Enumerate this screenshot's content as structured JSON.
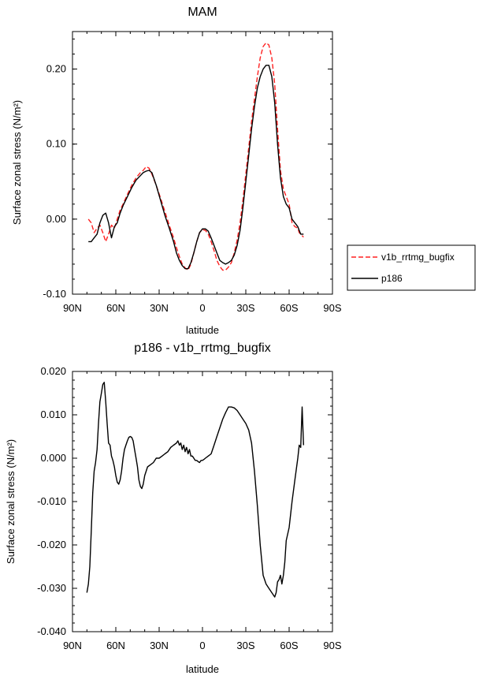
{
  "chart_data": [
    {
      "type": "line",
      "title": "MAM",
      "xlabel": "latitude",
      "ylabel": "Surface zonal stress (N/m²)",
      "xlim": [
        90,
        -90
      ],
      "ylim": [
        -0.1,
        0.25
      ],
      "x_ticks": [
        90,
        60,
        30,
        0,
        -30,
        -60,
        -90
      ],
      "x_tick_labels": [
        "90N",
        "60N",
        "30N",
        "0",
        "30S",
        "60S",
        "90S"
      ],
      "y_ticks": [
        -0.1,
        0.0,
        0.1,
        0.2
      ],
      "y_tick_labels": [
        "-0.10",
        "0.00",
        "0.10",
        "0.20"
      ],
      "legend_position": "outside-right",
      "series": [
        {
          "name": "v1b_rrtmg_bugfix",
          "color": "#ff2020",
          "style": "dashed",
          "x": [
            79,
            77,
            75,
            73,
            71,
            69,
            67,
            65,
            63,
            61,
            59,
            57,
            55,
            52,
            49,
            46,
            43,
            41,
            39,
            37,
            35,
            32,
            29,
            26,
            23,
            20,
            18,
            16,
            14,
            12,
            10,
            8,
            6,
            4,
            2,
            0,
            -2,
            -4,
            -6,
            -8,
            -10,
            -12,
            -14,
            -16,
            -18,
            -20,
            -22,
            -24,
            -26,
            -28,
            -30,
            -32,
            -34,
            -36,
            -38,
            -40,
            -42,
            -44,
            -46,
            -48,
            -50,
            -52,
            -54,
            -56,
            -58,
            -60,
            -62,
            -64,
            -66,
            -67,
            -68,
            -69,
            -70
          ],
          "y": [
            0.0,
            -0.005,
            -0.018,
            -0.012,
            -0.008,
            -0.018,
            -0.03,
            -0.02,
            -0.008,
            -0.012,
            0.0,
            0.012,
            0.02,
            0.033,
            0.045,
            0.055,
            0.062,
            0.065,
            0.07,
            0.068,
            0.06,
            0.045,
            0.028,
            0.01,
            -0.008,
            -0.025,
            -0.038,
            -0.05,
            -0.06,
            -0.065,
            -0.068,
            -0.06,
            -0.045,
            -0.03,
            -0.018,
            -0.014,
            -0.015,
            -0.02,
            -0.03,
            -0.042,
            -0.055,
            -0.063,
            -0.068,
            -0.068,
            -0.064,
            -0.058,
            -0.045,
            -0.028,
            -0.005,
            0.025,
            0.06,
            0.095,
            0.13,
            0.16,
            0.19,
            0.215,
            0.23,
            0.235,
            0.232,
            0.215,
            0.18,
            0.12,
            0.065,
            0.04,
            0.03,
            0.02,
            -0.005,
            -0.01,
            -0.012,
            -0.018,
            -0.02,
            -0.022,
            -0.024
          ]
        },
        {
          "name": "p186",
          "color": "#000000",
          "style": "solid",
          "x": [
            79,
            77,
            75,
            73,
            71,
            69,
            67,
            65,
            63,
            61,
            59,
            57,
            55,
            52,
            49,
            46,
            43,
            41,
            39,
            37,
            35,
            32,
            29,
            26,
            23,
            20,
            18,
            16,
            14,
            12,
            10,
            8,
            6,
            4,
            2,
            0,
            -2,
            -4,
            -6,
            -8,
            -10,
            -12,
            -14,
            -16,
            -18,
            -20,
            -22,
            -24,
            -26,
            -28,
            -30,
            -32,
            -34,
            -36,
            -38,
            -40,
            -42,
            -44,
            -46,
            -48,
            -50,
            -52,
            -54,
            -56,
            -58,
            -60,
            -62,
            -64,
            -66,
            -67,
            -68,
            -69,
            -70
          ],
          "y": [
            -0.03,
            -0.03,
            -0.025,
            -0.02,
            -0.005,
            0.005,
            0.008,
            -0.005,
            -0.025,
            -0.01,
            -0.005,
            0.008,
            0.018,
            0.03,
            0.042,
            0.052,
            0.058,
            0.062,
            0.064,
            0.065,
            0.062,
            0.045,
            0.025,
            0.005,
            -0.012,
            -0.03,
            -0.045,
            -0.055,
            -0.062,
            -0.066,
            -0.066,
            -0.058,
            -0.045,
            -0.03,
            -0.018,
            -0.013,
            -0.013,
            -0.016,
            -0.025,
            -0.035,
            -0.045,
            -0.055,
            -0.058,
            -0.06,
            -0.058,
            -0.055,
            -0.048,
            -0.035,
            -0.015,
            0.015,
            0.05,
            0.085,
            0.12,
            0.15,
            0.175,
            0.19,
            0.2,
            0.205,
            0.205,
            0.19,
            0.155,
            0.1,
            0.055,
            0.03,
            0.02,
            0.015,
            0.0,
            -0.005,
            -0.01,
            -0.015,
            -0.02,
            -0.02,
            -0.02
          ]
        }
      ]
    },
    {
      "type": "line",
      "title": "p186 - v1b_rrtmg_bugfix",
      "xlabel": "latitude",
      "ylabel": "Surface zonal stress (N/m²)",
      "xlim": [
        90,
        -90
      ],
      "ylim": [
        -0.04,
        0.02
      ],
      "x_ticks": [
        90,
        60,
        30,
        0,
        -30,
        -60,
        -90
      ],
      "x_tick_labels": [
        "90N",
        "60N",
        "30N",
        "0",
        "30S",
        "60S",
        "90S"
      ],
      "y_ticks": [
        -0.04,
        -0.03,
        -0.02,
        -0.01,
        0.0,
        0.01,
        0.02
      ],
      "y_tick_labels": [
        "-0.040",
        "-0.030",
        "-0.020",
        "-0.010",
        "0.000",
        "0.010",
        "0.020"
      ],
      "series": [
        {
          "name": "p186 - v1b_rrtmg_bugfix",
          "color": "#000000",
          "style": "solid",
          "x": [
            80,
            79,
            78,
            77,
            76,
            75,
            74,
            73,
            72,
            71,
            70,
            69,
            68,
            67,
            66,
            65,
            64,
            63,
            62,
            61,
            60,
            59,
            58,
            57,
            56,
            55,
            54,
            53,
            52,
            51,
            50,
            49,
            48,
            47,
            46,
            45,
            44,
            43,
            42,
            41,
            40,
            38,
            36,
            34,
            32,
            30,
            28,
            26,
            24,
            22,
            20,
            18,
            17,
            16,
            15,
            14,
            13,
            12,
            11,
            10,
            9,
            8,
            7,
            6,
            5,
            4,
            3,
            2,
            1,
            0,
            -1,
            -2,
            -4,
            -6,
            -8,
            -10,
            -12,
            -14,
            -16,
            -18,
            -20,
            -22,
            -24,
            -26,
            -28,
            -30,
            -32,
            -34,
            -36,
            -38,
            -40,
            -42,
            -44,
            -46,
            -48,
            -50,
            -51,
            -52,
            -53,
            -54,
            -55,
            -56,
            -57,
            -58,
            -60,
            -62,
            -64,
            -66,
            -67,
            -68,
            -69,
            -70
          ],
          "y": [
            -0.031,
            -0.029,
            -0.025,
            -0.017,
            -0.008,
            -0.003,
            -0.001,
            0.002,
            0.008,
            0.013,
            0.015,
            0.017,
            0.0175,
            0.013,
            0.008,
            0.0035,
            0.003,
            0.0005,
            -0.0005,
            -0.002,
            -0.004,
            -0.0055,
            -0.006,
            -0.005,
            -0.003,
            0.0,
            0.002,
            0.003,
            0.004,
            0.0048,
            0.005,
            0.0048,
            0.004,
            0.002,
            0.0,
            -0.002,
            -0.005,
            -0.0065,
            -0.007,
            -0.006,
            -0.004,
            -0.002,
            -0.0015,
            -0.001,
            0.0,
            0.0,
            0.0005,
            0.001,
            0.0015,
            0.0025,
            0.003,
            0.0035,
            0.004,
            0.003,
            0.0035,
            0.002,
            0.003,
            0.0015,
            0.0025,
            0.001,
            0.002,
            0.0005,
            0.0005,
            0.0,
            -0.0005,
            -0.0005,
            -0.0008,
            -0.001,
            -0.0005,
            -0.0005,
            -0.0003,
            0.0,
            0.0005,
            0.001,
            0.003,
            0.005,
            0.007,
            0.009,
            0.0105,
            0.0118,
            0.0118,
            0.0116,
            0.011,
            0.01,
            0.009,
            0.008,
            0.0065,
            0.0035,
            -0.003,
            -0.011,
            -0.02,
            -0.027,
            -0.029,
            -0.03,
            -0.031,
            -0.032,
            -0.031,
            -0.0285,
            -0.028,
            -0.027,
            -0.029,
            -0.027,
            -0.024,
            -0.019,
            -0.016,
            -0.01,
            -0.005,
            0.0,
            0.003,
            0.0025,
            0.0118,
            0.003
          ]
        }
      ]
    }
  ],
  "legend": {
    "entries": [
      {
        "label": "v1b_rrtmg_bugfix",
        "color": "#ff2020",
        "style": "dashed"
      },
      {
        "label": "p186",
        "color": "#000000",
        "style": "solid"
      }
    ]
  }
}
